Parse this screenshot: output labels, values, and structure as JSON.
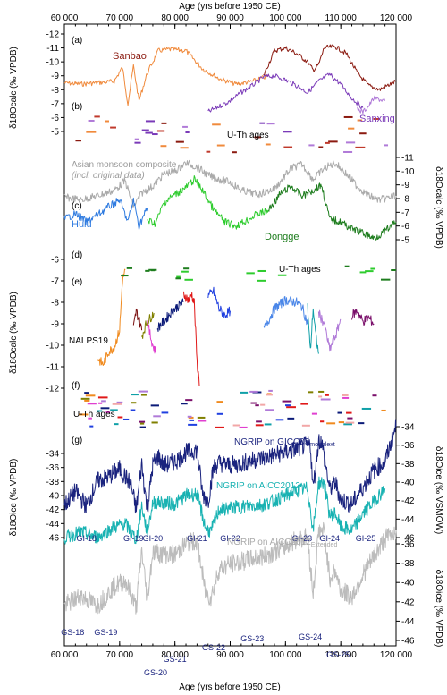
{
  "figure": {
    "top_axis_label": "Age (yrs before 1950 CE)",
    "bottom_axis_label": "Age (yrs before 1950 CE)",
    "panel_letters": [
      "(a)",
      "(b)",
      "(c)",
      "(d)",
      "(e)",
      "(f)",
      "(g)"
    ],
    "axis_titles": {
      "ab_left": "δ18Ocalc (‰ VPDB)",
      "cd_right": "δ18Ocalc (‰ VPDB)",
      "ef_left": "δ18Ocalc (‰ VPDB)",
      "g_left": "δ18Oice (‰ VPDB)",
      "g_right_top": "δ18Oice (‰ VSMOW)",
      "g_right_bottom": "δ18Oice (‰ VPDB)"
    },
    "labels": {
      "sanbao": "Sanbao",
      "sanxing": "Sanxing",
      "uth_ab": "U-Th ages",
      "composite_line1": "Asian monsoon composite",
      "composite_line2": "(incl. original data)",
      "hulu": "Hulu",
      "dongge": "Dongge",
      "uth_cd": "U-Th ages",
      "nalps": "NALPS19",
      "uth_ef": "U-Th ages",
      "ngrip_gicc": "NGRIP on GICC05modelext",
      "ngrip_aicc": "NGRIP on AICC2012",
      "ngrip_aicc_ext": "NGRIP on AICC2012Extended"
    },
    "gi_labels": [
      "GI-18",
      "GI-19",
      "GI-20",
      "GI-21",
      "GI-22",
      "GI-23",
      "GI-24",
      "GI-25"
    ],
    "gs_labels": [
      "GS-18",
      "GS-19",
      "GS-20",
      "GS-21",
      "GS-22",
      "GS-23",
      "GS-24",
      "GS-25"
    ]
  },
  "chart_data": [
    {
      "panel": "a-b",
      "type": "line",
      "xlabel": "Age (yrs before 1950 CE)",
      "xlim": [
        60000,
        120000
      ],
      "x_ticks": [
        60000,
        70000,
        80000,
        90000,
        100000,
        110000,
        120000
      ],
      "x_tick_labels": [
        "60 000",
        "70 000",
        "80 000",
        "90 000",
        "100 000",
        "110 000",
        "120 000"
      ],
      "ylabel": "δ18Ocalc (‰ VPDB)",
      "ylim": [
        -12,
        -5
      ],
      "y_ticks": [
        -12,
        -11,
        -10,
        -9,
        -8,
        -7,
        -6,
        -5
      ],
      "y_tick_labels": [
        "-12",
        "-11",
        "-10",
        "-9",
        "-8",
        "-7",
        "-6",
        "-5"
      ],
      "series": [
        {
          "name": "Sanbao",
          "color": "#f08a3c",
          "x": [
            60000,
            63000,
            66000,
            69000,
            70500,
            71500,
            72500,
            73500,
            75000,
            77000,
            79000,
            82000,
            85000,
            88000,
            91000,
            94000,
            97000
          ],
          "y": [
            -8.5,
            -8.4,
            -8.5,
            -8.6,
            -9.6,
            -7.0,
            -9.7,
            -7.2,
            -9.2,
            -10.8,
            -10.9,
            -10.8,
            -9.5,
            -8.8,
            -8.4,
            -8.6,
            -9.0
          ]
        },
        {
          "name": "Sanbao",
          "color": "#8b1a10",
          "x": [
            96000,
            98000,
            100000,
            102000,
            104000,
            105000,
            106000,
            107000,
            109000,
            111000,
            113000,
            115000,
            117000,
            119000,
            120000
          ],
          "y": [
            -9.0,
            -10.8,
            -11.0,
            -10.6,
            -10.0,
            -9.4,
            -9.8,
            -11.0,
            -11.1,
            -10.6,
            -9.2,
            -8.3,
            -8.0,
            -8.4,
            -8.6
          ]
        },
        {
          "name": "Sanxing",
          "color": "#7a3ab8",
          "x": [
            86000,
            88000,
            90000,
            92000,
            94000,
            96000,
            98000,
            100000,
            102000,
            104000,
            106000,
            108000,
            110000,
            112000,
            114000
          ],
          "y": [
            -6.4,
            -6.8,
            -7.2,
            -7.8,
            -8.3,
            -8.9,
            -9.0,
            -8.7,
            -8.3,
            -7.8,
            -8.6,
            -9.1,
            -8.4,
            -7.4,
            -6.7
          ]
        },
        {
          "name": "Sanxing",
          "color": "#b07ad8",
          "x": [
            113000,
            114000,
            115000,
            116000,
            117000,
            118000
          ],
          "y": [
            -6.6,
            -6.4,
            -6.8,
            -7.4,
            -7.3,
            -7.2
          ]
        }
      ]
    },
    {
      "panel": "c-d",
      "type": "line",
      "ylabel": "δ18Ocalc (‰ VPDB)",
      "ylim": [
        -11,
        -5
      ],
      "y_ticks": [
        -11,
        -10,
        -9,
        -8,
        -7,
        -6,
        -5
      ],
      "y_tick_labels": [
        "-11",
        "-10",
        "-9",
        "-8",
        "-7",
        "-6",
        "-5"
      ],
      "series": [
        {
          "name": "Asian monsoon composite",
          "color": "#aaaaaa",
          "x": [
            60000,
            63000,
            66000,
            69000,
            71000,
            72500,
            74000,
            76000,
            78000,
            80000,
            82000,
            84000,
            86000,
            88000,
            90000,
            92000,
            95000,
            98000,
            101000,
            103000,
            105000,
            107000,
            109000,
            111000,
            113000,
            115000,
            117000,
            120000
          ],
          "y": [
            -8.1,
            -7.9,
            -8.2,
            -8.6,
            -9.3,
            -7.4,
            -8.4,
            -8.9,
            -9.8,
            -10.0,
            -10.6,
            -10.3,
            -9.7,
            -9.4,
            -9.2,
            -8.6,
            -8.3,
            -8.7,
            -10.2,
            -10.5,
            -9.4,
            -10.2,
            -10.6,
            -9.8,
            -8.9,
            -8.2,
            -7.9,
            -8.2
          ]
        },
        {
          "name": "Hulu",
          "color": "#2f7be0",
          "x": [
            60000,
            62000,
            64000,
            66000,
            68000,
            70000,
            71500,
            72500,
            73500,
            75000
          ],
          "y": [
            -6.5,
            -6.9,
            -6.3,
            -6.8,
            -7.4,
            -7.9,
            -6.3,
            -7.9,
            -6.0,
            -7.3
          ]
        },
        {
          "name": "Dongge",
          "color": "#2ecc2e",
          "x": [
            75000,
            76500,
            78000,
            80000,
            82000,
            83500,
            85000,
            87000,
            89000,
            91000,
            93000,
            95000,
            97000
          ],
          "y": [
            -6.4,
            -6.2,
            -7.7,
            -8.3,
            -8.8,
            -9.4,
            -8.6,
            -7.2,
            -6.3,
            -6.0,
            -6.4,
            -6.9,
            -7.1
          ]
        },
        {
          "name": "Dongge",
          "color": "#1e7d1e",
          "x": [
            97000,
            99000,
            101000,
            103000,
            105000,
            106500,
            108000,
            110000,
            112000,
            114000,
            116000,
            118000,
            120000
          ],
          "y": [
            -7.2,
            -8.3,
            -8.9,
            -8.2,
            -8.6,
            -9.0,
            -6.5,
            -6.3,
            -5.8,
            -5.5,
            -5.1,
            -5.6,
            -6.3
          ]
        }
      ]
    },
    {
      "panel": "e-f",
      "type": "line",
      "ylabel": "δ18Ocalc (‰ VPDB)",
      "ylim": [
        -12,
        -6
      ],
      "y_ticks": [
        -12,
        -11,
        -10,
        -9,
        -8,
        -7,
        -6
      ],
      "y_tick_labels": [
        "-12",
        "-11",
        "-10",
        "-9",
        "-8",
        "-7",
        "-6"
      ],
      "series": [
        {
          "name": "NALPS19",
          "color": "#f08a1e",
          "x": [
            66000,
            67000,
            68000,
            69000,
            70000,
            70500,
            71000
          ],
          "y": [
            -10.6,
            -10.9,
            -10.3,
            -10.1,
            -9.3,
            -7.0,
            -6.5
          ]
        },
        {
          "name": "NALPS19",
          "color": "#7a0f0f",
          "x": [
            72500,
            73000,
            73500,
            74000
          ],
          "y": [
            -9.2,
            -8.4,
            -8.8,
            -9.3
          ]
        },
        {
          "name": "NALPS19",
          "color": "#808000",
          "x": [
            74000,
            74800,
            75600,
            76200
          ],
          "y": [
            -9.6,
            -9.0,
            -8.7,
            -8.5
          ]
        },
        {
          "name": "NALPS19",
          "color": "#e040d0",
          "x": [
            75000,
            75400,
            76000,
            76500
          ],
          "y": [
            -8.9,
            -9.4,
            -10.0,
            -10.3
          ]
        },
        {
          "name": "NALPS19",
          "color": "#0b1a78",
          "x": [
            76800,
            78000,
            79500,
            80500,
            81500
          ],
          "y": [
            -9.2,
            -8.9,
            -8.4,
            -8.2,
            -8.0
          ]
        },
        {
          "name": "NALPS19",
          "color": "#e01818",
          "x": [
            81500,
            82500,
            83000,
            83500,
            84000,
            84500
          ],
          "y": [
            -7.6,
            -7.9,
            -7.6,
            -8.0,
            -10.8,
            -11.9
          ]
        },
        {
          "name": "NALPS19",
          "color": "#2040e0",
          "x": [
            86000,
            87000,
            88000,
            89000,
            90000
          ],
          "y": [
            -7.7,
            -7.5,
            -8.3,
            -8.6,
            -8.4
          ]
        },
        {
          "name": "NALPS19",
          "color": "#4a86e8",
          "x": [
            96000,
            98000,
            100000,
            102000,
            103000,
            104000
          ],
          "y": [
            -9.3,
            -8.3,
            -7.9,
            -8.0,
            -8.2,
            -9.0
          ]
        },
        {
          "name": "NALPS19",
          "color": "#10a0a8",
          "x": [
            104000,
            104500,
            105000,
            105500,
            106000
          ],
          "y": [
            -8.2,
            -10.3,
            -8.3,
            -9.6,
            -10.4
          ]
        },
        {
          "name": "NALPS19",
          "color": "#b07ad8",
          "x": [
            106000,
            107000,
            108000,
            109000,
            110000
          ],
          "y": [
            -8.5,
            -9.0,
            -10.2,
            -9.6,
            -8.8
          ]
        },
        {
          "name": "NALPS19",
          "color": "#7a0f6a",
          "x": [
            112000,
            113000,
            114000,
            115000,
            116000
          ],
          "y": [
            -8.6,
            -8.4,
            -8.9,
            -8.7,
            -9.0
          ]
        }
      ]
    },
    {
      "panel": "g",
      "type": "line",
      "ylabel": "δ18Oice (‰ VPDB)",
      "ylim_left": [
        -46,
        -34
      ],
      "y_ticks_left": [
        -46,
        -44,
        -42,
        -40,
        -38,
        -36,
        -34
      ],
      "y_tick_labels_left": [
        "-46",
        "-44",
        "-42",
        "-40",
        "-38",
        "-36",
        "-34"
      ],
      "ylabel_right_top": "δ18Oice (‰ VSMOW)",
      "ylim_right_top": [
        -46,
        -34
      ],
      "y_ticks_right_top": [
        -46,
        -44,
        -42,
        -40,
        -38,
        -36,
        -34
      ],
      "y_tick_labels_right_top": [
        "-46",
        "-44",
        "-42",
        "-40",
        "-38",
        "-36",
        "-34"
      ],
      "ylabel_right_bottom": "δ18Oice (‰ VPDB)",
      "ylim_right_bottom": [
        -46,
        -36
      ],
      "y_ticks_right_bottom": [
        -46,
        -44,
        -42,
        -40,
        -38,
        -36
      ],
      "y_tick_labels_right_bottom": [
        "-46",
        "-44",
        "-42",
        "-40",
        "-38",
        "-36"
      ],
      "series": [
        {
          "name": "NGRIP on GICC05modelext",
          "color": "#1a237e",
          "x": [
            60000,
            62000,
            64000,
            66000,
            68000,
            70000,
            72000,
            73000,
            74000,
            75000,
            76000,
            77000,
            78000,
            80000,
            82000,
            84000,
            85000,
            86000,
            87000,
            88000,
            90000,
            92000,
            95000,
            98000,
            101000,
            103000,
            104500,
            105000,
            106000,
            106500,
            108000,
            109000,
            110000,
            112000,
            114000,
            116000,
            118000,
            120000
          ],
          "y": [
            -42.5,
            -41.0,
            -42.6,
            -39.9,
            -39.4,
            -38.6,
            -40.2,
            -43.0,
            -38.0,
            -43.0,
            -38.1,
            -37.2,
            -38.2,
            -37.8,
            -36.8,
            -36.5,
            -41.3,
            -42.1,
            -38.4,
            -37.9,
            -38.2,
            -38.0,
            -37.5,
            -37.1,
            -36.6,
            -36.2,
            -36.0,
            -40.7,
            -35.5,
            -35.5,
            -40.8,
            -40.0,
            -41.9,
            -42.4,
            -40.6,
            -38.7,
            -37.8,
            -34.0
          ]
        },
        {
          "name": "NGRIP on AICC2012",
          "color": "#18b2b2",
          "x": [
            60000,
            63000,
            66000,
            69000,
            71000,
            73000,
            74000,
            75000,
            76000,
            78000,
            80000,
            82000,
            84000,
            85500,
            86500,
            88000,
            90000,
            93000,
            96000,
            99000,
            102000,
            104000,
            105000,
            106000,
            107000,
            108000,
            109000,
            110000,
            112000,
            114000,
            116000,
            118000
          ],
          "y": [
            -46.0,
            -45.2,
            -46.0,
            -44.5,
            -44.0,
            -46.3,
            -41.5,
            -45.3,
            -41.0,
            -41.0,
            -41.2,
            -40.0,
            -39.8,
            -44.5,
            -45.2,
            -42.0,
            -41.8,
            -41.5,
            -41.3,
            -40.4,
            -39.3,
            -39.0,
            -45.0,
            -38.2,
            -38.2,
            -42.9,
            -42.5,
            -44.5,
            -45.0,
            -42.6,
            -40.8,
            -39.0
          ]
        },
        {
          "name": "NGRIP on AICC2012Extended",
          "color": "#bcbcbc",
          "x": [
            60000,
            63000,
            66000,
            69000,
            71000,
            73000,
            74000,
            75000,
            76000,
            78000,
            80000,
            82000,
            84000,
            85500,
            86500,
            88000,
            90000,
            93000,
            96000,
            99000,
            102000,
            104000,
            105000,
            106000,
            107000,
            108000,
            109000,
            110000,
            112000,
            114000,
            116000,
            118000,
            120000
          ],
          "y": [
            -42.4,
            -41.4,
            -42.4,
            -40.4,
            -39.8,
            -42.6,
            -36.7,
            -41.7,
            -36.8,
            -37.1,
            -37.1,
            -36.0,
            -35.7,
            -41.0,
            -41.6,
            -38.6,
            -38.1,
            -37.7,
            -37.3,
            -36.6,
            -35.5,
            -35.3,
            -41.2,
            -34.7,
            -34.7,
            -39.5,
            -38.8,
            -40.8,
            -41.5,
            -39.2,
            -37.3,
            -35.5,
            -34.6
          ]
        }
      ],
      "annotations_gi": [
        {
          "label": "GI-18",
          "x": 64000
        },
        {
          "label": "GI-19",
          "x": 72500
        },
        {
          "label": "GI-20",
          "x": 76000
        },
        {
          "label": "GI-21",
          "x": 84000
        },
        {
          "label": "GI-22",
          "x": 90000
        },
        {
          "label": "GI-23",
          "x": 103000
        },
        {
          "label": "GI-24",
          "x": 108000
        },
        {
          "label": "GI-25",
          "x": 114500
        }
      ],
      "annotations_gs": [
        {
          "label": "GS-18",
          "x": 61500
        },
        {
          "label": "GS-19",
          "x": 67500
        },
        {
          "label": "GS-20",
          "x": 76500
        },
        {
          "label": "GS-21",
          "x": 80000
        },
        {
          "label": "GS-22",
          "x": 87000
        },
        {
          "label": "GS-23",
          "x": 94000
        },
        {
          "label": "GS-24",
          "x": 104500
        },
        {
          "label": "GS-25",
          "x": 109500
        }
      ]
    }
  ]
}
